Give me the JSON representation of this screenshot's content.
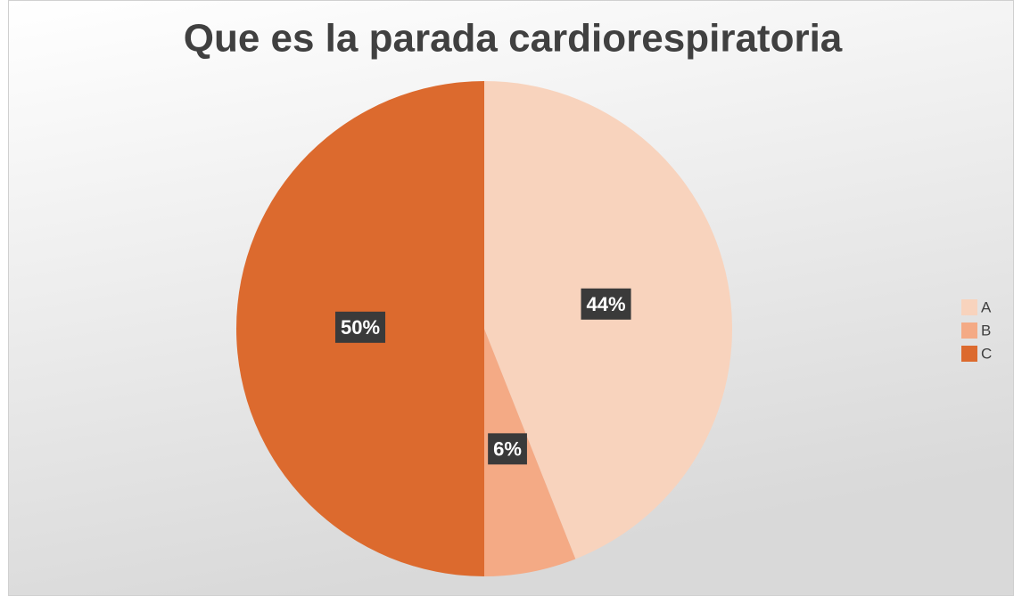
{
  "chart_data": {
    "type": "pie",
    "title": "Que es la parada cardiorespiratoria",
    "categories": [
      "A",
      "B",
      "C"
    ],
    "values": [
      44,
      6,
      50
    ],
    "value_labels": [
      "44%",
      "6%",
      "50%"
    ],
    "colors": [
      "#f8d3bd",
      "#f4aa85",
      "#dc6a2e"
    ],
    "legend": "right"
  }
}
